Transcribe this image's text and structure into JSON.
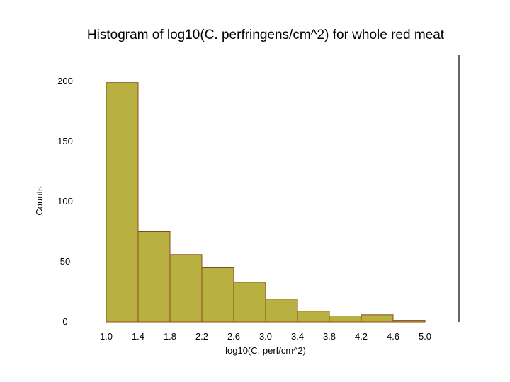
{
  "chart_data": {
    "type": "bar",
    "title": "Histogram of log10(C. perfringens/cm^2) for whole red meat",
    "xlabel": "log10(C. perf/cm^2)",
    "ylabel": "Counts",
    "bin_edges": [
      1.0,
      1.4,
      1.8,
      2.2,
      2.6,
      3.0,
      3.4,
      3.8,
      4.2,
      4.6,
      5.0
    ],
    "x_tick_labels": [
      "1.0",
      "1.4",
      "1.8",
      "2.2",
      "2.6",
      "3.0",
      "3.4",
      "3.8",
      "4.2",
      "4.6",
      "5.0"
    ],
    "values": [
      199,
      75,
      56,
      45,
      33,
      19,
      9,
      5,
      6,
      1
    ],
    "y_ticks": [
      0,
      50,
      100,
      150,
      200
    ],
    "ylim": [
      0,
      200
    ],
    "xlim": [
      1.0,
      5.0
    ],
    "bar_color": "#b8b040",
    "bar_edge_color": "#8b4a1e",
    "grid": false
  }
}
